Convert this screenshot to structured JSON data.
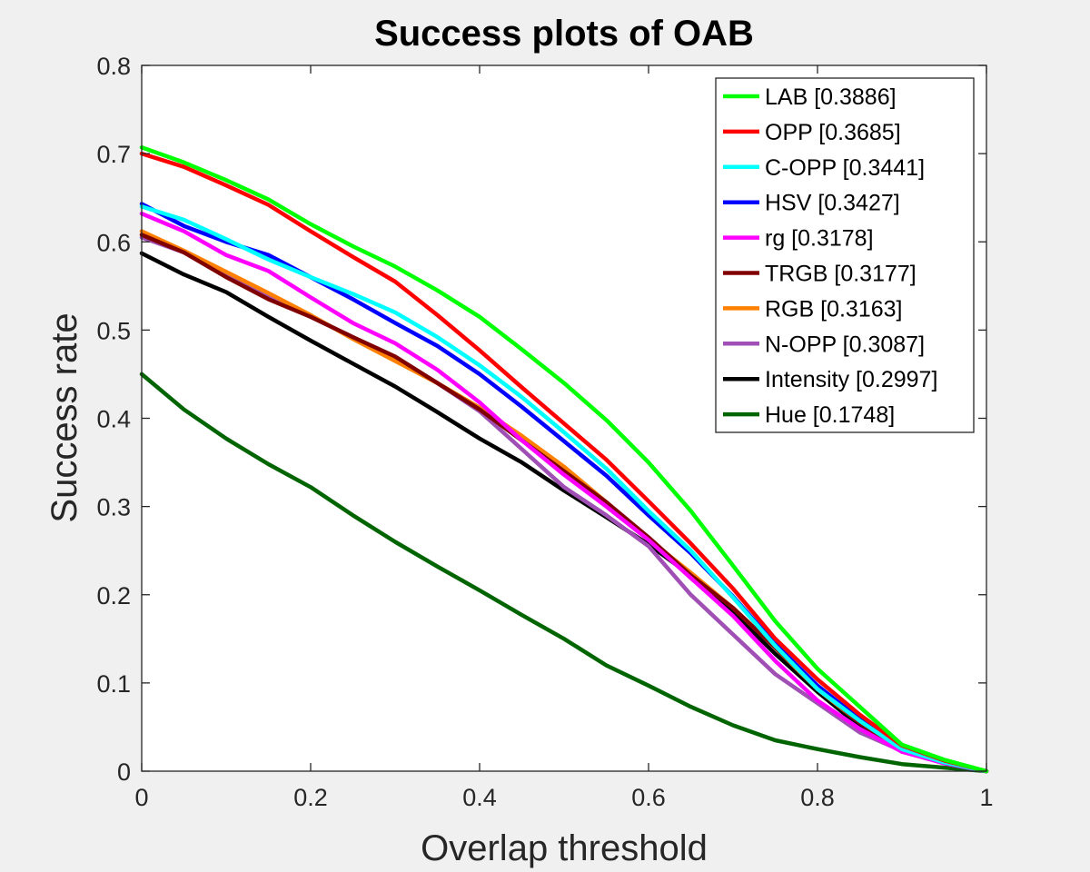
{
  "chart_data": {
    "type": "line",
    "title": "Success plots of OAB",
    "xlabel": "Overlap threshold",
    "ylabel": "Success rate",
    "xlim": [
      0,
      1
    ],
    "ylim": [
      0,
      0.8
    ],
    "xticks": [
      "0",
      "0.2",
      "0.4",
      "0.6",
      "0.8",
      "1"
    ],
    "yticks": [
      "0",
      "0.1",
      "0.2",
      "0.3",
      "0.4",
      "0.5",
      "0.6",
      "0.7",
      "0.8"
    ],
    "grid": false,
    "legend_position": "top-right",
    "x": [
      0,
      0.05,
      0.1,
      0.15,
      0.2,
      0.25,
      0.3,
      0.35,
      0.4,
      0.45,
      0.5,
      0.55,
      0.6,
      0.65,
      0.7,
      0.75,
      0.8,
      0.85,
      0.9,
      0.95,
      1.0
    ],
    "series": [
      {
        "name": "LAB [0.3886]",
        "color": "#00ff00",
        "values": [
          0.707,
          0.69,
          0.67,
          0.648,
          0.62,
          0.595,
          0.572,
          0.545,
          0.515,
          0.478,
          0.44,
          0.398,
          0.35,
          0.295,
          0.233,
          0.17,
          0.116,
          0.073,
          0.03,
          0.013,
          0.0
        ]
      },
      {
        "name": "OPP [0.3685]",
        "color": "#ff0000",
        "values": [
          0.7,
          0.685,
          0.664,
          0.642,
          0.612,
          0.583,
          0.555,
          0.517,
          0.477,
          0.435,
          0.394,
          0.353,
          0.306,
          0.258,
          0.207,
          0.15,
          0.104,
          0.064,
          0.029,
          0.012,
          0.0
        ]
      },
      {
        "name": "C-OPP [0.3441]",
        "color": "#00ffff",
        "values": [
          0.64,
          0.625,
          0.603,
          0.58,
          0.56,
          0.541,
          0.52,
          0.492,
          0.46,
          0.424,
          0.384,
          0.343,
          0.295,
          0.25,
          0.197,
          0.142,
          0.093,
          0.057,
          0.025,
          0.01,
          0.0
        ]
      },
      {
        "name": "HSV [0.3427]",
        "color": "#0000ff",
        "values": [
          0.643,
          0.618,
          0.6,
          0.585,
          0.56,
          0.535,
          0.508,
          0.482,
          0.45,
          0.413,
          0.374,
          0.335,
          0.29,
          0.247,
          0.198,
          0.144,
          0.097,
          0.059,
          0.026,
          0.01,
          0.0
        ]
      },
      {
        "name": "rg [0.3178]",
        "color": "#ff00ff",
        "values": [
          0.632,
          0.612,
          0.585,
          0.567,
          0.537,
          0.508,
          0.485,
          0.455,
          0.418,
          0.375,
          0.336,
          0.3,
          0.262,
          0.219,
          0.176,
          0.125,
          0.08,
          0.048,
          0.022,
          0.009,
          0.0
        ]
      },
      {
        "name": "TRGB [0.3177]",
        "color": "#800000",
        "values": [
          0.608,
          0.588,
          0.56,
          0.535,
          0.515,
          0.492,
          0.47,
          0.44,
          0.41,
          0.375,
          0.34,
          0.305,
          0.265,
          0.222,
          0.185,
          0.14,
          0.095,
          0.055,
          0.022,
          0.01,
          0.0
        ]
      },
      {
        "name": "RGB [0.3163]",
        "color": "#ff8000",
        "values": [
          0.612,
          0.59,
          0.566,
          0.542,
          0.517,
          0.49,
          0.465,
          0.44,
          0.412,
          0.38,
          0.345,
          0.305,
          0.263,
          0.225,
          0.185,
          0.14,
          0.093,
          0.055,
          0.024,
          0.01,
          0.0
        ]
      },
      {
        "name": "N-OPP [0.3087]",
        "color": "#a050b4",
        "values": [
          0.605,
          0.588,
          0.565,
          0.538,
          0.515,
          0.492,
          0.467,
          0.44,
          0.408,
          0.365,
          0.322,
          0.29,
          0.255,
          0.2,
          0.155,
          0.11,
          0.077,
          0.044,
          0.023,
          0.009,
          0.0
        ]
      },
      {
        "name": "Intensity [0.2997]",
        "color": "#000000",
        "values": [
          0.587,
          0.563,
          0.543,
          0.515,
          0.488,
          0.462,
          0.436,
          0.407,
          0.377,
          0.35,
          0.318,
          0.288,
          0.257,
          0.222,
          0.18,
          0.133,
          0.09,
          0.051,
          0.023,
          0.01,
          0.0
        ]
      },
      {
        "name": "Hue [0.1748]",
        "color": "#006400",
        "values": [
          0.45,
          0.41,
          0.377,
          0.348,
          0.322,
          0.29,
          0.26,
          0.232,
          0.205,
          0.177,
          0.15,
          0.12,
          0.097,
          0.073,
          0.052,
          0.035,
          0.025,
          0.016,
          0.008,
          0.004,
          0.0
        ]
      }
    ]
  }
}
